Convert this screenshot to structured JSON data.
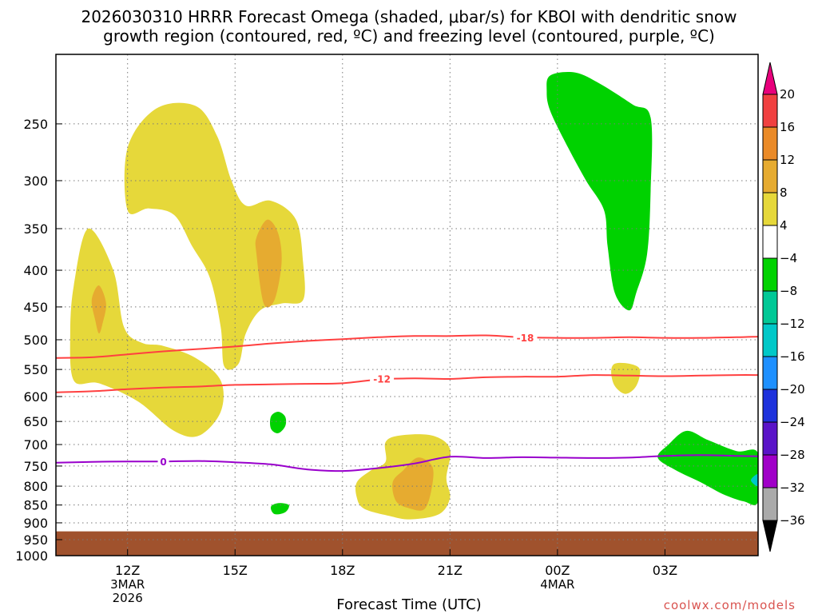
{
  "title": {
    "line1": "2026030310 HRRR Forecast Omega (shaded, μbar/s) for KBOI with dendritic snow",
    "line2": "growth region (contoured, red, ºC) and freezing level (contoured, purple, ºC)"
  },
  "xlabel": "Forecast Time (UTC)",
  "credit": "coolwx.com/models",
  "colors": {
    "terrain": "#a0522d",
    "dgz_contour": "#ff4040",
    "freezing_contour": "#9900cc",
    "grid": "#7a7a7a"
  },
  "chart_data": {
    "type": "heatmap",
    "title": "2026030310 HRRR Forecast Omega (shaded, μbar/s) for KBOI with dendritic snow growth region (contoured, red, ºC) and freezing level (contoured, purple, ºC)",
    "xlabel": "Forecast Time (UTC)",
    "ylabel": "",
    "x_range_hours_utc": [
      10,
      29.6
    ],
    "x_ticks": [
      {
        "hour": 12,
        "lines": [
          "12Z",
          "3MAR",
          "2026"
        ]
      },
      {
        "hour": 15,
        "lines": [
          "15Z"
        ]
      },
      {
        "hour": 18,
        "lines": [
          "18Z"
        ]
      },
      {
        "hour": 21,
        "lines": [
          "21Z"
        ]
      },
      {
        "hour": 24,
        "lines": [
          "00Z",
          "4MAR"
        ]
      },
      {
        "hour": 27,
        "lines": [
          "03Z"
        ]
      }
    ],
    "y_scale": "log",
    "y_range_mb": [
      200,
      1000
    ],
    "y_ticks": [
      250,
      300,
      350,
      400,
      450,
      500,
      550,
      600,
      650,
      700,
      750,
      800,
      850,
      900,
      950,
      1000
    ],
    "grid": true,
    "terrain_pressure_mb": 925,
    "colorbar": {
      "levels": [
        20,
        16,
        12,
        8,
        4,
        -4,
        -8,
        -12,
        -16,
        -20,
        -24,
        -28,
        -32,
        -36
      ],
      "bins": [
        {
          "from": 20,
          "to": 24,
          "color": "#e8007c"
        },
        {
          "from": 16,
          "to": 20,
          "color": "#f04040"
        },
        {
          "from": 12,
          "to": 16,
          "color": "#ea8a28"
        },
        {
          "from": 8,
          "to": 12,
          "color": "#e6ab30"
        },
        {
          "from": 4,
          "to": 8,
          "color": "#e6d83a"
        },
        {
          "from": -4,
          "to": 4,
          "color": "#ffffff"
        },
        {
          "from": -8,
          "to": -4,
          "color": "#00d200"
        },
        {
          "from": -12,
          "to": -8,
          "color": "#00c896"
        },
        {
          "from": -16,
          "to": -12,
          "color": "#00c8c8"
        },
        {
          "from": -20,
          "to": -16,
          "color": "#1e90ff"
        },
        {
          "from": -24,
          "to": -20,
          "color": "#1e32dc"
        },
        {
          "from": -28,
          "to": -24,
          "color": "#5a14c8"
        },
        {
          "from": -32,
          "to": -28,
          "color": "#a000c8"
        },
        {
          "from": -36,
          "to": -32,
          "color": "#aaaaaa"
        },
        {
          "from": -40,
          "to": -36,
          "color": "#000000"
        }
      ]
    },
    "omega_regions": [
      {
        "bin": "4 to 8",
        "color": "#e6d83a",
        "points": [
          [
            10.5,
            570
          ],
          [
            10.4,
            490
          ],
          [
            10.5,
            420
          ],
          [
            10.9,
            350
          ],
          [
            11.6,
            400
          ],
          [
            11.9,
            480
          ],
          [
            12.4,
            505
          ],
          [
            13.0,
            510
          ],
          [
            13.9,
            530
          ],
          [
            14.6,
            570
          ],
          [
            14.6,
            630
          ],
          [
            14.0,
            680
          ],
          [
            13.3,
            670
          ],
          [
            12.3,
            610
          ],
          [
            11.2,
            575
          ]
        ]
      },
      {
        "bin": "4 to 8",
        "color": "#e6d83a",
        "points": [
          [
            12.0,
            330
          ],
          [
            12.0,
            270
          ],
          [
            12.8,
            238
          ],
          [
            13.9,
            236
          ],
          [
            14.5,
            260
          ],
          [
            14.9,
            300
          ],
          [
            15.3,
            325
          ],
          [
            16.0,
            320
          ],
          [
            16.7,
            340
          ],
          [
            16.9,
            390
          ],
          [
            16.9,
            440
          ],
          [
            16.3,
            445
          ],
          [
            15.7,
            455
          ],
          [
            15.3,
            490
          ],
          [
            15.1,
            540
          ],
          [
            14.7,
            545
          ],
          [
            14.6,
            480
          ],
          [
            14.3,
            410
          ],
          [
            13.8,
            370
          ],
          [
            13.3,
            335
          ],
          [
            12.6,
            328
          ]
        ]
      },
      {
        "bin": "8 to 12",
        "color": "#e6ab30",
        "points": [
          [
            15.6,
            380
          ],
          [
            15.6,
            360
          ],
          [
            15.9,
            340
          ],
          [
            16.2,
            355
          ],
          [
            16.3,
            390
          ],
          [
            16.1,
            440
          ],
          [
            15.8,
            445
          ]
        ]
      },
      {
        "bin": "8 to 12",
        "color": "#e6ab30",
        "points": [
          [
            11.1,
            470
          ],
          [
            11.0,
            440
          ],
          [
            11.2,
            420
          ],
          [
            11.4,
            445
          ],
          [
            11.3,
            475
          ],
          [
            11.2,
            490
          ]
        ]
      },
      {
        "bin": "4 to 8",
        "color": "#e6d83a",
        "points": [
          [
            18.4,
            790
          ],
          [
            18.8,
            760
          ],
          [
            19.2,
            740
          ],
          [
            19.2,
            695
          ],
          [
            19.6,
            680
          ],
          [
            20.5,
            680
          ],
          [
            21.0,
            710
          ],
          [
            20.9,
            780
          ],
          [
            21.0,
            830
          ],
          [
            20.7,
            875
          ],
          [
            19.9,
            890
          ],
          [
            19.3,
            880
          ],
          [
            18.6,
            860
          ],
          [
            18.4,
            830
          ]
        ]
      },
      {
        "bin": "8 to 12",
        "color": "#e6ab30",
        "points": [
          [
            19.4,
            790
          ],
          [
            19.7,
            760
          ],
          [
            20.1,
            730
          ],
          [
            20.5,
            750
          ],
          [
            20.5,
            800
          ],
          [
            20.3,
            860
          ],
          [
            19.9,
            860
          ],
          [
            19.5,
            840
          ]
        ]
      },
      {
        "bin": "4 to 8",
        "color": "#e6d83a",
        "points": [
          [
            25.5,
            555
          ],
          [
            25.6,
            540
          ],
          [
            26.0,
            540
          ],
          [
            26.3,
            550
          ],
          [
            26.2,
            580
          ],
          [
            25.9,
            595
          ],
          [
            25.6,
            580
          ]
        ]
      },
      {
        "bin": "-8 to -4",
        "color": "#00d200",
        "points": [
          [
            23.7,
            225
          ],
          [
            23.8,
            214
          ],
          [
            24.5,
            212
          ],
          [
            25.2,
            220
          ],
          [
            26.1,
            235
          ],
          [
            26.6,
            245
          ],
          [
            26.6,
            310
          ],
          [
            26.5,
            380
          ],
          [
            26.2,
            430
          ],
          [
            26.0,
            455
          ],
          [
            25.6,
            430
          ],
          [
            25.4,
            370
          ],
          [
            25.3,
            330
          ],
          [
            24.8,
            300
          ],
          [
            24.3,
            270
          ],
          [
            23.8,
            240
          ]
        ]
      },
      {
        "bin": "-8 to -4",
        "color": "#00d200",
        "points": [
          [
            16.0,
            640
          ],
          [
            16.2,
            630
          ],
          [
            16.4,
            640
          ],
          [
            16.4,
            660
          ],
          [
            16.2,
            675
          ],
          [
            16.0,
            665
          ]
        ]
      },
      {
        "bin": "-8 to -4",
        "color": "#00d200",
        "points": [
          [
            16.0,
            855
          ],
          [
            16.2,
            845
          ],
          [
            16.5,
            850
          ],
          [
            16.4,
            870
          ],
          [
            16.1,
            875
          ]
        ]
      },
      {
        "bin": "-8 to -4",
        "color": "#00d200",
        "points": [
          [
            26.8,
            730
          ],
          [
            27.1,
            700
          ],
          [
            27.6,
            670
          ],
          [
            28.2,
            690
          ],
          [
            29.0,
            715
          ],
          [
            29.6,
            720
          ],
          [
            29.6,
            840
          ],
          [
            29.2,
            840
          ],
          [
            28.6,
            820
          ],
          [
            28.0,
            790
          ],
          [
            27.3,
            760
          ]
        ]
      },
      {
        "bin": "-12 to -8",
        "color": "#00c8c8",
        "points": [
          [
            29.4,
            785
          ],
          [
            29.6,
            770
          ],
          [
            29.6,
            800
          ]
        ]
      }
    ],
    "temperature_contours": [
      {
        "label": "-18",
        "color": "#ff4040",
        "label_at": [
          23.1,
          497
        ],
        "points": [
          [
            10.0,
            530
          ],
          [
            11.0,
            529
          ],
          [
            12.0,
            524
          ],
          [
            13.0,
            519
          ],
          [
            14.0,
            515
          ],
          [
            15.0,
            511
          ],
          [
            16.0,
            506
          ],
          [
            17.0,
            502
          ],
          [
            18.0,
            499
          ],
          [
            19.0,
            496
          ],
          [
            20.0,
            494
          ],
          [
            21.0,
            494
          ],
          [
            22.0,
            493
          ],
          [
            23.0,
            496
          ],
          [
            24.0,
            497
          ],
          [
            25.0,
            497
          ],
          [
            26.0,
            496
          ],
          [
            27.0,
            497
          ],
          [
            28.0,
            497
          ],
          [
            29.0,
            496
          ],
          [
            29.6,
            495
          ]
        ]
      },
      {
        "label": "-12",
        "color": "#ff4040",
        "label_at": [
          19.1,
          567
        ],
        "points": [
          [
            10.0,
            592
          ],
          [
            11.0,
            590
          ],
          [
            12.0,
            586
          ],
          [
            13.0,
            583
          ],
          [
            14.0,
            581
          ],
          [
            15.0,
            578
          ],
          [
            16.0,
            577
          ],
          [
            17.0,
            576
          ],
          [
            18.0,
            575
          ],
          [
            19.0,
            568
          ],
          [
            20.0,
            566
          ],
          [
            21.0,
            567
          ],
          [
            22.0,
            564
          ],
          [
            23.0,
            563
          ],
          [
            24.0,
            563
          ],
          [
            25.0,
            560
          ],
          [
            26.0,
            561
          ],
          [
            27.0,
            562
          ],
          [
            28.0,
            561
          ],
          [
            29.0,
            560
          ],
          [
            29.6,
            560
          ]
        ]
      },
      {
        "label": "0",
        "color": "#9900cc",
        "label_at": [
          13.0,
          740
        ],
        "points": [
          [
            10.0,
            742
          ],
          [
            11.0,
            740
          ],
          [
            12.0,
            739
          ],
          [
            13.0,
            739
          ],
          [
            14.0,
            738
          ],
          [
            15.0,
            741
          ],
          [
            16.0,
            746
          ],
          [
            17.0,
            758
          ],
          [
            18.0,
            762
          ],
          [
            19.0,
            755
          ],
          [
            20.0,
            744
          ],
          [
            21.0,
            728
          ],
          [
            22.0,
            731
          ],
          [
            23.0,
            729
          ],
          [
            24.0,
            730
          ],
          [
            25.0,
            731
          ],
          [
            26.0,
            730
          ],
          [
            27.0,
            726
          ],
          [
            28.0,
            724
          ],
          [
            29.0,
            726
          ],
          [
            29.6,
            727
          ]
        ]
      }
    ]
  }
}
